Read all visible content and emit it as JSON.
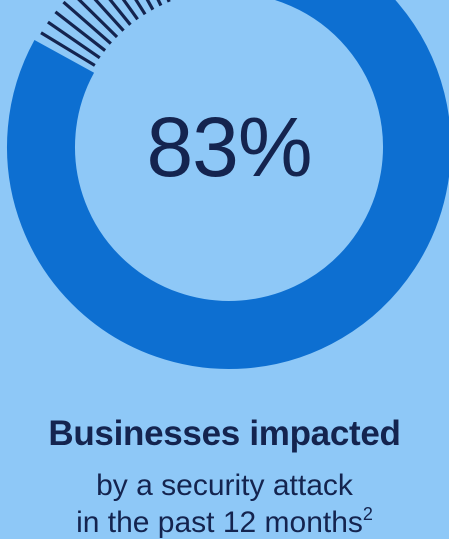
{
  "chart_data": {
    "type": "pie",
    "values": [
      83
    ],
    "total": 100,
    "colors": {
      "background": "#8ec8f7",
      "ring": "#0d6fd1",
      "ticks": "#14244f",
      "text": "#14244f"
    }
  },
  "center_label": "83%",
  "headline": "Businesses impacted",
  "subtitle_line1": "by a security attack",
  "subtitle_line2_text": "in the past 12 months",
  "subtitle_line2_footnote": "2"
}
